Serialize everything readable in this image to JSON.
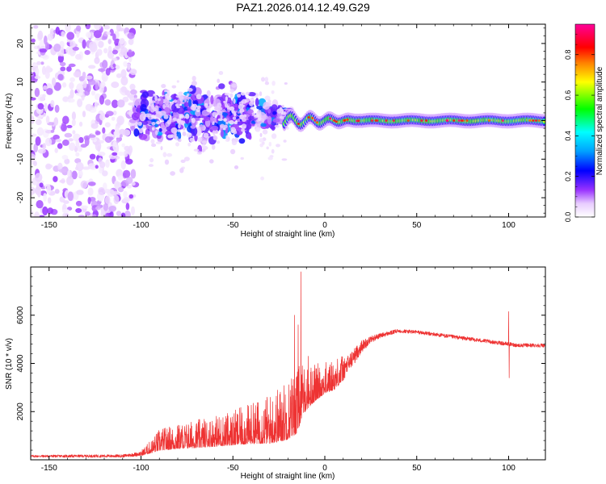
{
  "title": "PAZ1.2026.014.12.49.G29",
  "colors": {
    "snr_line": "#ee3333",
    "axis": "#000000",
    "background": "#ffffff"
  },
  "chart_data": [
    {
      "type": "heatmap",
      "name": "spectrogram",
      "xlabel": "Height of straight line (km)",
      "ylabel": "Frequency (Hz)",
      "xlim": [
        -160,
        120
      ],
      "ylim": [
        -25,
        25
      ],
      "xticks": [
        -150,
        -100,
        -50,
        0,
        50,
        100
      ],
      "xtick_labels": [
        "-150",
        "-100",
        "-50",
        "0",
        "50",
        "100"
      ],
      "yticks": [
        -20,
        -10,
        0,
        10,
        20
      ],
      "ytick_labels": [
        "-20",
        "-10",
        "0",
        "10",
        "20"
      ],
      "colorbar": {
        "label": "Normalized spectral amplitude",
        "range": [
          0.0,
          0.95
        ],
        "ticks": [
          0.0,
          0.2,
          0.4,
          0.6,
          0.8
        ],
        "tick_labels": [
          "0.0",
          "0.2",
          "0.4",
          "0.6",
          "0.8"
        ],
        "colormap": "rainbow (white-violet-blue-cyan-green-yellow-red-magenta)"
      },
      "regions": [
        {
          "x_range": [
            -160,
            -103
          ],
          "freq_spread": [
            -25,
            25
          ],
          "amplitude": [
            0.0,
            0.05
          ],
          "description": "diffuse low-amplitude noise"
        },
        {
          "x_range": [
            -103,
            -45
          ],
          "freq_spread": [
            -8,
            12
          ],
          "amplitude": [
            0.02,
            0.25
          ],
          "description": "scattered signal"
        },
        {
          "x_range": [
            -45,
            -20
          ],
          "freq_spread": [
            -6,
            6
          ],
          "amplitude": [
            0.05,
            0.3
          ],
          "description": "converging signal"
        },
        {
          "x_range": [
            -20,
            120
          ],
          "freq_spread": [
            -1.5,
            1.5
          ],
          "amplitude": [
            0.5,
            0.95
          ],
          "description": "coherent tone near 0 Hz"
        }
      ]
    },
    {
      "type": "line",
      "name": "snr",
      "xlabel": "Height of straight line (km)",
      "ylabel": "SNR (10 * v/v)",
      "xlim": [
        -160,
        120
      ],
      "ylim": [
        0,
        8000
      ],
      "xticks": [
        -150,
        -100,
        -50,
        0,
        50,
        100
      ],
      "xtick_labels": [
        "-150",
        "-100",
        "-50",
        "0",
        "50",
        "100"
      ],
      "yticks": [
        2000,
        4000,
        6000
      ],
      "ytick_labels": [
        "2000",
        "4000",
        "6000"
      ],
      "envelope": {
        "x": [
          -160,
          -110,
          -100,
          -95,
          -90,
          -80,
          -70,
          -60,
          -50,
          -40,
          -30,
          -25,
          -20,
          -15,
          -12,
          -10,
          -5,
          0,
          5,
          10,
          15,
          20,
          25,
          30,
          40,
          50,
          60,
          70,
          80,
          90,
          95,
          100,
          105,
          110,
          120
        ],
        "y": [
          150,
          160,
          250,
          450,
          700,
          820,
          900,
          1000,
          1100,
          1250,
          1400,
          1550,
          1750,
          2100,
          2600,
          2700,
          3000,
          3200,
          3350,
          3700,
          4200,
          4700,
          5000,
          5150,
          5350,
          5300,
          5200,
          5100,
          5000,
          4900,
          4850,
          4800,
          4750,
          4750,
          4750
        ],
        "noise": [
          50,
          60,
          90,
          200,
          350,
          400,
          450,
          500,
          550,
          650,
          800,
          900,
          1000,
          1100,
          800,
          700,
          600,
          500,
          500,
          450,
          350,
          250,
          150,
          100,
          80,
          80,
          80,
          80,
          80,
          80,
          80,
          80,
          80,
          80,
          80
        ]
      },
      "spikes": [
        {
          "x": -16.5,
          "y": 6000
        },
        {
          "x": -14.5,
          "y": 5600
        },
        {
          "x": -13.0,
          "y": 7800
        },
        {
          "x": -9.0,
          "y": 4300
        },
        {
          "x": 100.0,
          "y": 6150
        },
        {
          "x": 100.3,
          "y": 3400
        }
      ]
    }
  ]
}
